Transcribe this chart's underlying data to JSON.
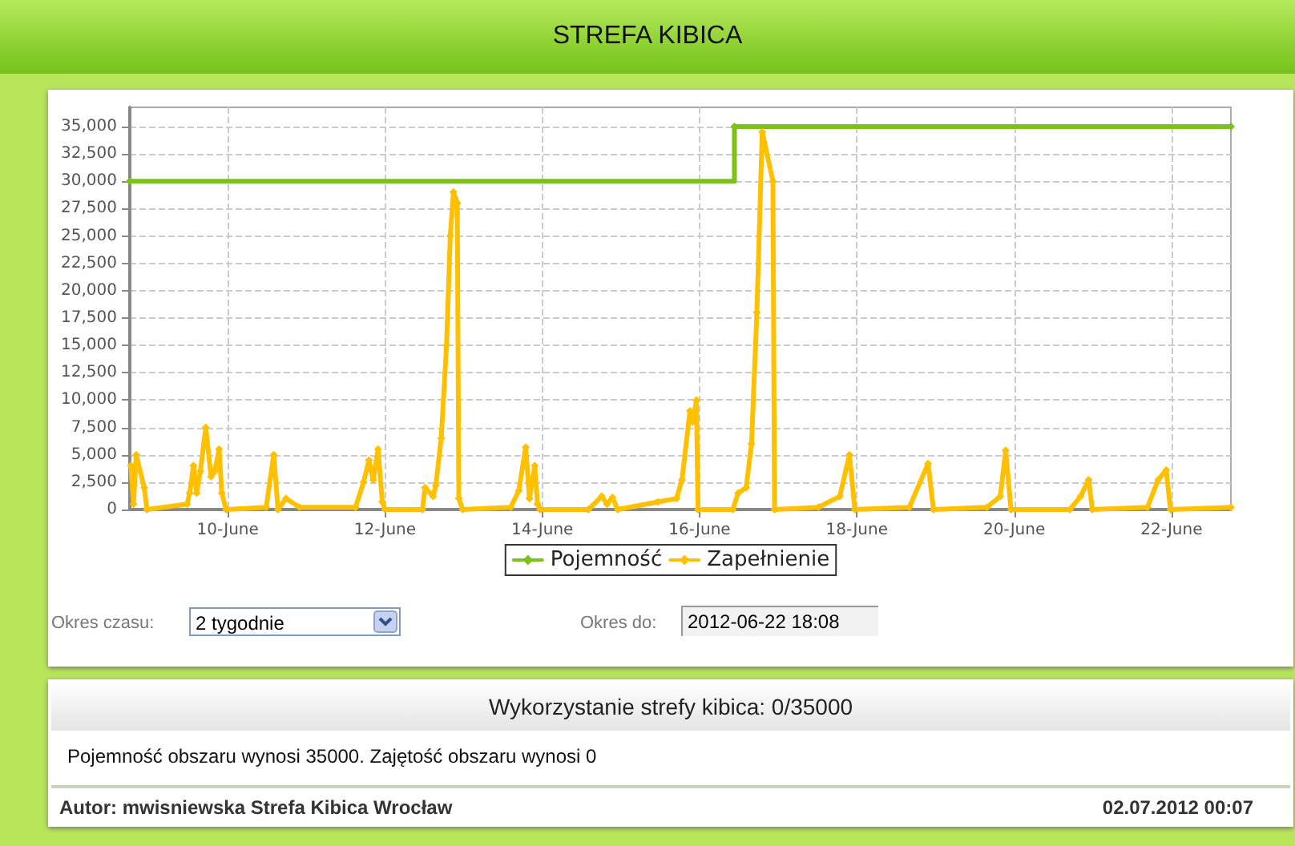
{
  "chart_data": {
    "type": "line",
    "title": "STREFA KIBICA",
    "xlim": [
      "2012-06-08T18:08",
      "2012-06-22T18:08"
    ],
    "xticks": [
      {
        "value": "2012-06-10",
        "label": "10-June"
      },
      {
        "value": "2012-06-12",
        "label": "12-June"
      },
      {
        "value": "2012-06-14",
        "label": "14-June"
      },
      {
        "value": "2012-06-16",
        "label": "16-June"
      },
      {
        "value": "2012-06-18",
        "label": "18-June"
      },
      {
        "value": "2012-06-20",
        "label": "20-June"
      },
      {
        "value": "2012-06-22",
        "label": "22-June"
      }
    ],
    "ylim": [
      0,
      36750
    ],
    "yticks": [
      0,
      {
        "value": 2500,
        "label": "2,500"
      },
      {
        "value": 5000,
        "label": "5,000"
      },
      {
        "value": 7500,
        "label": "7,500"
      },
      {
        "value": 10000,
        "label": "10,000"
      },
      {
        "value": 12500,
        "label": "12,500"
      },
      {
        "value": 15000,
        "label": "15,000"
      },
      {
        "value": 17500,
        "label": "17,500"
      },
      {
        "value": 20000,
        "label": "20,000"
      },
      {
        "value": 22500,
        "label": "22,500"
      },
      {
        "value": 25000,
        "label": "25,000"
      },
      {
        "value": 27500,
        "label": "27,500"
      },
      {
        "value": 30000,
        "label": "30,000"
      },
      {
        "value": 32500,
        "label": "32,500"
      },
      {
        "value": 35000,
        "label": "35,000"
      }
    ],
    "grid": true,
    "legend": "bottom",
    "marker": "diamond",
    "line_style": "solid",
    "series": [
      {
        "name": "Pojemność",
        "type": "step",
        "color": "#7dc11a",
        "x": [
          "2012-06-08T18:08",
          "2012-06-16T10:38",
          "2012-06-22T18:08"
        ],
        "values": [
          30000,
          35000,
          35000
        ]
      },
      {
        "name": "Zapełnienie",
        "color": "#ffc000",
        "x": [
          "2012-06-08T18:27",
          "2012-06-08T19:16",
          "2012-06-08T20:05",
          "2012-06-08T22:32",
          "2012-06-08T23:21",
          "2012-06-09T11:36",
          "2012-06-09T12:24",
          "2012-06-09T13:33",
          "2012-06-09T14:32",
          "2012-06-09T15:40",
          "2012-06-09T17:18",
          "2012-06-09T18:56",
          "2012-06-09T20:05",
          "2012-06-09T21:23",
          "2012-06-09T22:12",
          "2012-06-09T23:31",
          "2012-06-10T11:45",
          "2012-06-10T14:03",
          "2012-06-10T15:21",
          "2012-06-10T17:48",
          "2012-06-10T21:53",
          "2012-06-11T15:01",
          "2012-06-11T17:28",
          "2012-06-11T19:06",
          "2012-06-11T20:25",
          "2012-06-11T21:53",
          "2012-06-11T23:11",
          "2012-06-12T00:00",
          "2012-06-12T11:26",
          "2012-06-12T12:15",
          "2012-06-12T14:42",
          "2012-06-12T15:31",
          "2012-06-12T17:09",
          "2012-06-12T18:47",
          "2012-06-12T19:55",
          "2012-06-12T20:54",
          "2012-06-12T22:03",
          "2012-06-12T22:32",
          "2012-06-12T23:41",
          "2012-06-13T14:22",
          "2012-06-13T16:49",
          "2012-06-13T18:57",
          "2012-06-13T20:05",
          "2012-06-13T21:43",
          "2012-06-13T22:32",
          "2012-06-13T23:21",
          "2012-06-14T14:03",
          "2012-06-14T18:08",
          "2012-06-14T19:46",
          "2012-06-14T21:24",
          "2012-06-14T23:02",
          "2012-06-15T11:17",
          "2012-06-15T16:59",
          "2012-06-15T18:37",
          "2012-06-15T21:04",
          "2012-06-15T21:54",
          "2012-06-15T23:02",
          "2012-06-15T23:31",
          "2012-06-16T10:08",
          "2012-06-16T11:46",
          "2012-06-16T14:13",
          "2012-06-16T15:51",
          "2012-06-16T17:29",
          "2012-06-16T19:07",
          "2012-06-16T22:23",
          "2012-06-16T22:52",
          "2012-06-17T12:16",
          "2012-06-17T18:47",
          "2012-06-17T21:44",
          "2012-06-17T23:22",
          "2012-06-18T16:01",
          "2012-06-18T21:44",
          "2012-06-18T23:22",
          "2012-06-19T15:41",
          "2012-06-19T19:46",
          "2012-06-19T21:24",
          "2012-06-19T23:02",
          "2012-06-20T17:00",
          "2012-06-20T20:16",
          "2012-06-20T22:43",
          "2012-06-20T23:52",
          "2012-06-21T16:40",
          "2012-06-21T19:56",
          "2012-06-21T22:23",
          "2012-06-21T23:42",
          "2012-06-22T18:08"
        ],
        "values": [
          4000,
          500,
          5000,
          2000,
          0,
          500,
          1500,
          4000,
          1500,
          3500,
          7500,
          3000,
          3500,
          5500,
          1500,
          0,
          200,
          5000,
          0,
          1000,
          200,
          200,
          2500,
          4500,
          2700,
          5500,
          700,
          0,
          0,
          2000,
          1200,
          2200,
          6500,
          15000,
          25000,
          29000,
          28000,
          1000,
          0,
          200,
          1700,
          5700,
          1000,
          4000,
          500,
          0,
          0,
          1200,
          500,
          1100,
          0,
          700,
          1000,
          2700,
          9000,
          8000,
          10000,
          0,
          0,
          1500,
          2000,
          6000,
          18000,
          34500,
          30000,
          0,
          200,
          1200,
          5000,
          0,
          200,
          4200,
          0,
          200,
          1200,
          5400,
          0,
          0,
          1200,
          2700,
          0,
          200,
          2700,
          3600,
          0,
          200
        ]
      }
    ],
    "annotations": [
      "Okres czasu:",
      "2 tygodnie",
      "Okres do:",
      "2012-06-22 18:08",
      "Wykorzystanie strefy kibica: 0/35000",
      "Pojemność obszaru wynosi 35000. Zajętość obszaru wynosi 0",
      "Autor: mwisniewska Strefa Kibica Wrocław",
      "02.07.2012 00:07"
    ]
  }
}
